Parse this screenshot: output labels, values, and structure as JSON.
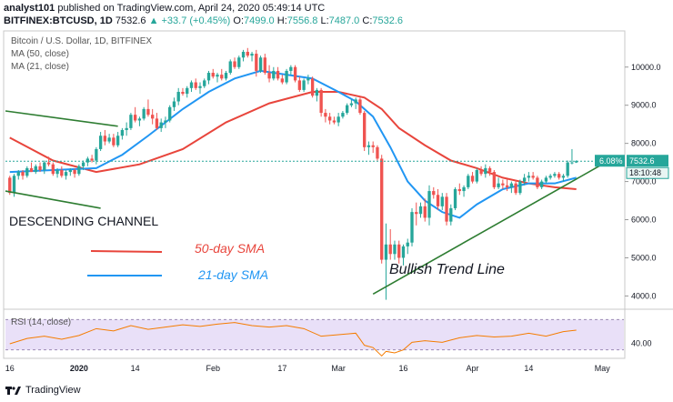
{
  "header": {
    "publisher": "analyst101",
    "published_line": "published on TradingView.com, April 24, 2020 05:49:14 UTC",
    "symbol": "BITFINEX:BTCUSD, 1D",
    "price": "7532.6",
    "change": "▲ +33.7 (+0.45%)",
    "o_label": "O:",
    "o_value": "7499.0",
    "h_label": "H:",
    "h_value": "7556.8",
    "l_label": "L:",
    "l_value": "7487.0",
    "c_label": "C:",
    "c_value": "7532.6"
  },
  "legend": {
    "title": "Bitcoin / U.S. Dollar, 1D, BITFINEX",
    "ma50": "MA (50, close)",
    "ma21": "MA (21, close)"
  },
  "annotations": {
    "channel": "DESCENDING CHANNEL",
    "sma50": "50-day SMA",
    "sma21": "21-day SMA",
    "trend": "Bullish Trend Line"
  },
  "price_tags": {
    "pct": "6.08%",
    "last": "7532.6",
    "countdown": "18:10:48"
  },
  "rsi": {
    "label": "RSI (14, close)",
    "level": "40.00"
  },
  "footer": {
    "brand": "TradingView"
  },
  "colors": {
    "up": "#26a69a",
    "down": "#ef5350",
    "ma50": "#e8453c",
    "ma21": "#2196f3",
    "trend": "#2e7d32",
    "rsi": "#f57c00",
    "rsi_band": "#e1d5f5"
  },
  "chart_data": {
    "type": "candlestick",
    "y_axis_ticks": [
      "4000.0",
      "5000.0",
      "6000.0",
      "7000.0",
      "8000.0",
      "9000.0",
      "10000.0"
    ],
    "ylim": [
      3700,
      10900
    ],
    "x_tick_labels": [
      "16",
      "2020",
      "14",
      "Feb",
      "17",
      "Mar",
      "16",
      "Apr",
      "14",
      "May"
    ],
    "x_tick_days": [
      0,
      16,
      29,
      47,
      63,
      76,
      91,
      107,
      120,
      137
    ],
    "x_day_range": [
      -1,
      142
    ],
    "candles": [
      [
        0,
        7100,
        7150,
        6650,
        6700
      ],
      [
        1,
        6700,
        7200,
        6600,
        7150
      ],
      [
        2,
        7150,
        7300,
        7050,
        7250
      ],
      [
        3,
        7250,
        7300,
        7050,
        7150
      ],
      [
        4,
        7150,
        7400,
        7100,
        7350
      ],
      [
        5,
        7350,
        7500,
        7250,
        7250
      ],
      [
        6,
        7250,
        7450,
        7200,
        7400
      ],
      [
        7,
        7400,
        7500,
        7250,
        7300
      ],
      [
        8,
        7300,
        7550,
        7200,
        7500
      ],
      [
        9,
        7500,
        7650,
        7400,
        7450
      ],
      [
        10,
        7450,
        7500,
        7150,
        7200
      ],
      [
        11,
        7200,
        7350,
        7100,
        7300
      ],
      [
        12,
        7300,
        7400,
        7100,
        7150
      ],
      [
        13,
        7150,
        7300,
        7050,
        7250
      ],
      [
        14,
        7250,
        7350,
        7150,
        7300
      ],
      [
        15,
        7300,
        7350,
        7100,
        7200
      ],
      [
        16,
        7200,
        7450,
        7150,
        7400
      ],
      [
        17,
        7400,
        7550,
        7300,
        7500
      ],
      [
        18,
        7500,
        7650,
        7400,
        7600
      ],
      [
        19,
        7600,
        7700,
        7500,
        7550
      ],
      [
        20,
        7550,
        7900,
        7450,
        7850
      ],
      [
        21,
        7850,
        8300,
        7800,
        8200
      ],
      [
        22,
        8200,
        8350,
        7950,
        8050
      ],
      [
        23,
        8050,
        8250,
        8000,
        8150
      ],
      [
        24,
        8150,
        8250,
        7900,
        7950
      ],
      [
        25,
        7950,
        8300,
        7900,
        8200
      ],
      [
        26,
        8200,
        8400,
        8100,
        8350
      ],
      [
        27,
        8350,
        8550,
        8200,
        8400
      ],
      [
        28,
        8400,
        8800,
        8350,
        8750
      ],
      [
        29,
        8750,
        8950,
        8550,
        8600
      ],
      [
        30,
        8600,
        8700,
        8450,
        8650
      ],
      [
        31,
        8650,
        8950,
        8600,
        8900
      ],
      [
        32,
        8900,
        9150,
        8700,
        8750
      ],
      [
        33,
        8750,
        8900,
        8500,
        8650
      ],
      [
        34,
        8650,
        8800,
        8350,
        8400
      ],
      [
        35,
        8400,
        8650,
        8300,
        8550
      ],
      [
        36,
        8550,
        8700,
        8400,
        8600
      ],
      [
        37,
        8600,
        9000,
        8550,
        8950
      ],
      [
        38,
        8950,
        9200,
        8850,
        9100
      ],
      [
        39,
        9100,
        9450,
        9000,
        9350
      ],
      [
        40,
        9350,
        9450,
        9250,
        9300
      ],
      [
        41,
        9300,
        9500,
        9200,
        9450
      ],
      [
        42,
        9450,
        9650,
        9350,
        9600
      ],
      [
        43,
        9600,
        9700,
        9400,
        9450
      ],
      [
        44,
        9450,
        9600,
        9300,
        9500
      ],
      [
        45,
        9500,
        9700,
        9450,
        9650
      ],
      [
        46,
        9650,
        9900,
        9550,
        9850
      ],
      [
        47,
        9850,
        9950,
        9700,
        9750
      ],
      [
        48,
        9750,
        9850,
        9600,
        9800
      ],
      [
        49,
        9800,
        9950,
        9650,
        9700
      ],
      [
        50,
        9700,
        9900,
        9650,
        9850
      ],
      [
        51,
        9850,
        10200,
        9800,
        10150
      ],
      [
        52,
        10150,
        10250,
        9950,
        10000
      ],
      [
        53,
        10000,
        10300,
        9950,
        10250
      ],
      [
        54,
        10250,
        10450,
        10150,
        10400
      ],
      [
        55,
        10400,
        10500,
        10250,
        10300
      ],
      [
        56,
        10300,
        10400,
        10150,
        10350
      ],
      [
        57,
        10350,
        10450,
        9750,
        9900
      ],
      [
        58,
        9900,
        10300,
        9850,
        10250
      ],
      [
        59,
        10250,
        10350,
        9800,
        9850
      ],
      [
        60,
        9850,
        10050,
        9600,
        9700
      ],
      [
        61,
        9700,
        10000,
        9650,
        9900
      ],
      [
        62,
        9900,
        10000,
        9650,
        9700
      ],
      [
        63,
        9700,
        9800,
        9550,
        9600
      ],
      [
        64,
        9600,
        9950,
        9550,
        9900
      ],
      [
        65,
        9900,
        10050,
        9800,
        10000
      ],
      [
        66,
        10000,
        10050,
        9600,
        9650
      ],
      [
        67,
        9650,
        9750,
        9350,
        9400
      ],
      [
        68,
        9400,
        9700,
        9350,
        9650
      ],
      [
        69,
        9650,
        9800,
        9550,
        9700
      ],
      [
        70,
        9700,
        9750,
        9200,
        9250
      ],
      [
        71,
        9250,
        9450,
        9100,
        9400
      ],
      [
        72,
        9400,
        9450,
        8700,
        8800
      ],
      [
        73,
        8800,
        8900,
        8550,
        8700
      ],
      [
        74,
        8700,
        8800,
        8500,
        8600
      ],
      [
        75,
        8600,
        8700,
        8500,
        8550
      ],
      [
        76,
        8550,
        8800,
        8450,
        8700
      ],
      [
        77,
        8700,
        8850,
        8650,
        8800
      ],
      [
        78,
        8800,
        9050,
        8750,
        9000
      ],
      [
        79,
        9000,
        9150,
        8950,
        9050
      ],
      [
        80,
        9050,
        9200,
        8900,
        9150
      ],
      [
        81,
        9150,
        9200,
        8750,
        8800
      ],
      [
        82,
        8800,
        8850,
        7800,
        7900
      ],
      [
        83,
        7900,
        8050,
        7700,
        7950
      ],
      [
        84,
        7950,
        8050,
        7750,
        7900
      ],
      [
        85,
        7900,
        7950,
        7550,
        7600
      ],
      [
        86,
        7600,
        7700,
        4850,
        4950
      ],
      [
        87,
        4950,
        5900,
        3900,
        5350
      ],
      [
        88,
        5350,
        5750,
        4950,
        5100
      ],
      [
        89,
        5100,
        5450,
        4950,
        5350
      ],
      [
        90,
        5350,
        5450,
        4850,
        5000
      ],
      [
        91,
        5000,
        5350,
        4800,
        5300
      ],
      [
        92,
        5300,
        5500,
        5100,
        5400
      ],
      [
        93,
        5400,
        6300,
        5300,
        6200
      ],
      [
        94,
        6200,
        6450,
        5850,
        6150
      ],
      [
        95,
        6150,
        6450,
        6050,
        6350
      ],
      [
        96,
        6350,
        6550,
        5950,
        6050
      ],
      [
        97,
        6050,
        6900,
        5850,
        6750
      ],
      [
        98,
        6750,
        6850,
        6550,
        6650
      ],
      [
        99,
        6650,
        6800,
        6250,
        6350
      ],
      [
        100,
        6350,
        6700,
        6250,
        6600
      ],
      [
        101,
        6600,
        6700,
        5850,
        5950
      ],
      [
        102,
        5950,
        6400,
        5850,
        6300
      ],
      [
        103,
        6300,
        6850,
        6250,
        6800
      ],
      [
        104,
        6800,
        6950,
        6650,
        6750
      ],
      [
        105,
        6750,
        6900,
        6600,
        6850
      ],
      [
        106,
        6850,
        7200,
        6800,
        7150
      ],
      [
        107,
        7150,
        7250,
        6950,
        7000
      ],
      [
        108,
        7000,
        7350,
        6950,
        7300
      ],
      [
        109,
        7300,
        7400,
        7150,
        7200
      ],
      [
        110,
        7200,
        7450,
        7100,
        7350
      ],
      [
        111,
        7350,
        7400,
        7150,
        7250
      ],
      [
        112,
        7250,
        7300,
        6800,
        6850
      ],
      [
        113,
        6850,
        7100,
        6800,
        6950
      ],
      [
        114,
        6950,
        7050,
        6800,
        6900
      ],
      [
        115,
        6900,
        7050,
        6750,
        6850
      ],
      [
        116,
        6850,
        7000,
        6700,
        6950
      ],
      [
        117,
        6950,
        7050,
        6650,
        6700
      ],
      [
        118,
        6700,
        7050,
        6650,
        7000
      ],
      [
        119,
        7000,
        7200,
        6900,
        7100
      ],
      [
        120,
        7100,
        7250,
        7000,
        7150
      ],
      [
        121,
        7150,
        7250,
        7050,
        7100
      ],
      [
        122,
        7100,
        7150,
        6800,
        6850
      ],
      [
        123,
        6850,
        7050,
        6800,
        7000
      ],
      [
        124,
        7000,
        7150,
        6950,
        7100
      ],
      [
        125,
        7100,
        7200,
        7050,
        7150
      ],
      [
        126,
        7150,
        7250,
        7100,
        7200
      ],
      [
        127,
        7200,
        7250,
        7050,
        7100
      ],
      [
        128,
        7100,
        7200,
        7000,
        7150
      ],
      [
        129,
        7150,
        7550,
        7100,
        7500
      ],
      [
        130,
        7500,
        7850,
        7450,
        7500
      ],
      [
        131,
        7499,
        7557,
        7487,
        7533
      ]
    ],
    "ma50": [
      [
        0,
        8150
      ],
      [
        10,
        7550
      ],
      [
        20,
        7250
      ],
      [
        30,
        7450
      ],
      [
        40,
        7850
      ],
      [
        50,
        8550
      ],
      [
        60,
        9050
      ],
      [
        70,
        9350
      ],
      [
        76,
        9350
      ],
      [
        82,
        9200
      ],
      [
        86,
        8900
      ],
      [
        90,
        8400
      ],
      [
        96,
        7950
      ],
      [
        102,
        7550
      ],
      [
        108,
        7350
      ],
      [
        114,
        7100
      ],
      [
        120,
        6950
      ],
      [
        126,
        6850
      ],
      [
        131,
        6800
      ]
    ],
    "ma21": [
      [
        0,
        7250
      ],
      [
        10,
        7300
      ],
      [
        20,
        7350
      ],
      [
        26,
        7700
      ],
      [
        32,
        8200
      ],
      [
        40,
        8900
      ],
      [
        46,
        9350
      ],
      [
        52,
        9700
      ],
      [
        58,
        9900
      ],
      [
        64,
        9800
      ],
      [
        70,
        9700
      ],
      [
        76,
        9350
      ],
      [
        80,
        9100
      ],
      [
        84,
        8700
      ],
      [
        88,
        7900
      ],
      [
        92,
        7000
      ],
      [
        96,
        6500
      ],
      [
        100,
        6200
      ],
      [
        104,
        6050
      ],
      [
        108,
        6400
      ],
      [
        114,
        6800
      ],
      [
        120,
        6950
      ],
      [
        126,
        6950
      ],
      [
        131,
        7100
      ]
    ],
    "trend_lines": [
      {
        "points": [
          [
            -1,
            8850
          ],
          [
            25,
            8450
          ]
        ]
      },
      {
        "points": [
          [
            -1,
            6750
          ],
          [
            21,
            6300
          ]
        ]
      },
      {
        "points": [
          [
            84,
            4050
          ],
          [
            137,
            7450
          ]
        ]
      }
    ],
    "last_price": 7532.6,
    "rsi_ylim": [
      20,
      80
    ],
    "rsi_band": [
      30,
      70
    ],
    "rsi_level": 40,
    "rsi_values": [
      [
        0,
        38
      ],
      [
        4,
        45
      ],
      [
        8,
        48
      ],
      [
        12,
        44
      ],
      [
        16,
        49
      ],
      [
        20,
        58
      ],
      [
        24,
        55
      ],
      [
        28,
        62
      ],
      [
        32,
        57
      ],
      [
        36,
        60
      ],
      [
        40,
        63
      ],
      [
        44,
        61
      ],
      [
        48,
        64
      ],
      [
        52,
        66
      ],
      [
        56,
        62
      ],
      [
        60,
        60
      ],
      [
        64,
        62
      ],
      [
        68,
        58
      ],
      [
        72,
        48
      ],
      [
        76,
        50
      ],
      [
        80,
        52
      ],
      [
        82,
        36
      ],
      [
        84,
        33
      ],
      [
        86,
        22
      ],
      [
        87,
        28
      ],
      [
        89,
        26
      ],
      [
        91,
        30
      ],
      [
        93,
        40
      ],
      [
        96,
        42
      ],
      [
        100,
        40
      ],
      [
        104,
        46
      ],
      [
        108,
        49
      ],
      [
        112,
        47
      ],
      [
        116,
        48
      ],
      [
        120,
        52
      ],
      [
        124,
        48
      ],
      [
        128,
        54
      ],
      [
        131,
        56
      ]
    ]
  }
}
